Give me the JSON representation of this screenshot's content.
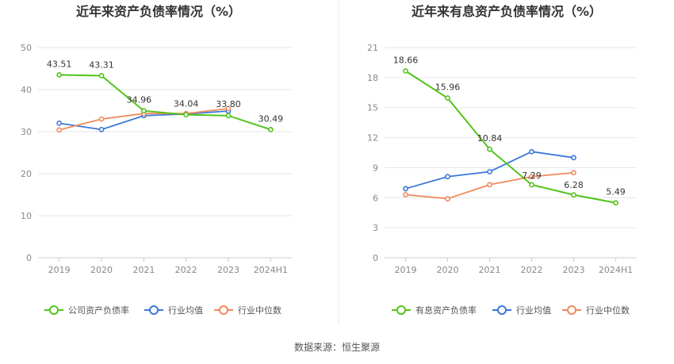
{
  "source_note": "数据来源：恒生聚源",
  "charts": [
    {
      "type": "line",
      "title": "近年来资产负债率情况（%）",
      "categories": [
        "2019",
        "2020",
        "2021",
        "2022",
        "2023",
        "2024H1"
      ],
      "y_ticks": [
        "0",
        "10",
        "20",
        "30",
        "40",
        "50"
      ],
      "ylim": [
        0,
        50
      ],
      "grid": true,
      "legend_position": "bottom",
      "series": [
        {
          "name": "公司资产负债率",
          "color": "#52c41a",
          "values": [
            43.51,
            43.31,
            34.96,
            34.04,
            33.8,
            30.49
          ],
          "labels": [
            "43.51",
            "43.31",
            "34.96",
            "34.04",
            "33.80",
            "30.49"
          ]
        },
        {
          "name": "行业均值",
          "color": "#3b78d8",
          "values": [
            32.0,
            30.5,
            33.8,
            34.2,
            34.9,
            null
          ]
        },
        {
          "name": "行业中位数",
          "color": "#f08a5d",
          "values": [
            30.4,
            33.0,
            34.3,
            34.3,
            35.5,
            null
          ]
        }
      ]
    },
    {
      "type": "line",
      "title": "近年来有息资产负债率情况（%）",
      "categories": [
        "2019",
        "2020",
        "2021",
        "2022",
        "2023",
        "2024H1"
      ],
      "y_ticks": [
        "0",
        "3",
        "6",
        "9",
        "12",
        "15",
        "18",
        "21"
      ],
      "ylim": [
        0,
        21
      ],
      "grid": true,
      "legend_position": "bottom",
      "series": [
        {
          "name": "有息资产负债率",
          "color": "#52c41a",
          "values": [
            18.66,
            15.96,
            10.84,
            7.29,
            6.28,
            5.49
          ],
          "labels": [
            "18.66",
            "15.96",
            "10.84",
            "7.29",
            "6.28",
            "5.49"
          ]
        },
        {
          "name": "行业均值",
          "color": "#3b78d8",
          "values": [
            6.9,
            8.1,
            8.6,
            10.6,
            10.0,
            null
          ]
        },
        {
          "name": "行业中位数",
          "color": "#f08a5d",
          "values": [
            6.3,
            5.9,
            7.3,
            8.1,
            8.5,
            null
          ]
        }
      ]
    }
  ]
}
